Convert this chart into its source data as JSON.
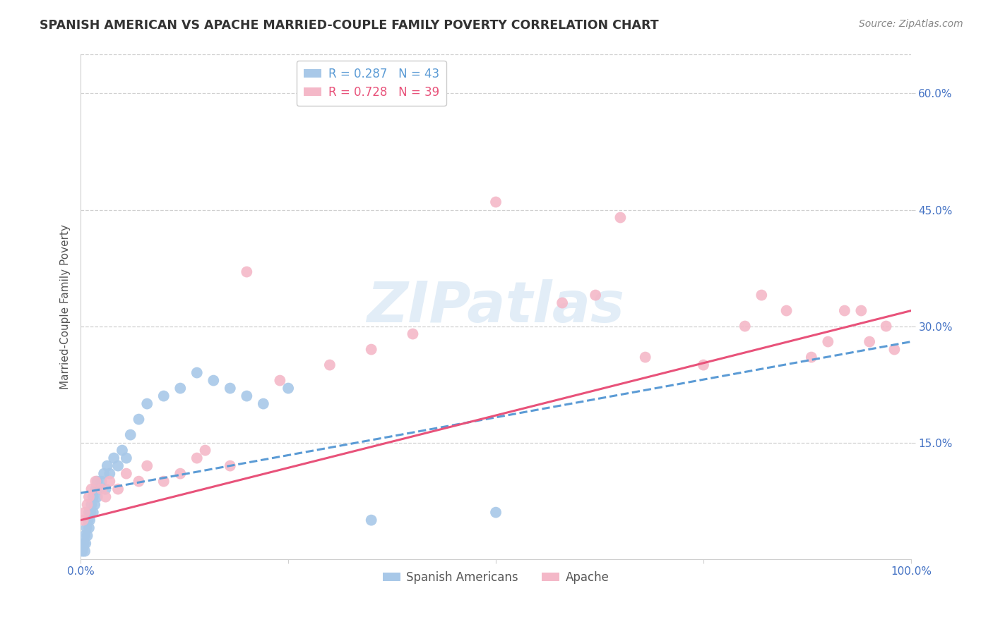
{
  "title": "SPANISH AMERICAN VS APACHE MARRIED-COUPLE FAMILY POVERTY CORRELATION CHART",
  "source": "Source: ZipAtlas.com",
  "ylabel": "Married-Couple Family Poverty",
  "xlim": [
    0,
    100
  ],
  "ylim": [
    0,
    65
  ],
  "yticks": [
    15,
    30,
    45,
    60
  ],
  "ytick_labels": [
    "15.0%",
    "30.0%",
    "45.0%",
    "60.0%"
  ],
  "xticks": [
    0,
    100
  ],
  "xtick_labels": [
    "0.0%",
    "100.0%"
  ],
  "background_color": "#ffffff",
  "series1_name": "Spanish Americans",
  "series1_color": "#a8c8e8",
  "series1_line_color": "#5b9bd5",
  "series1_R": 0.287,
  "series1_N": 43,
  "series2_name": "Apache",
  "series2_color": "#f4b8c8",
  "series2_line_color": "#e8527a",
  "series2_R": 0.728,
  "series2_N": 39,
  "grid_color": "#d0d0d0",
  "tick_color": "#4472c4",
  "series1_x": [
    0.2,
    0.3,
    0.4,
    0.5,
    0.5,
    0.6,
    0.7,
    0.8,
    0.9,
    1.0,
    1.0,
    1.1,
    1.2,
    1.3,
    1.5,
    1.5,
    1.7,
    1.8,
    2.0,
    2.0,
    2.2,
    2.5,
    2.8,
    3.0,
    3.2,
    3.5,
    4.0,
    4.5,
    5.0,
    5.5,
    6.0,
    7.0,
    8.0,
    10.0,
    12.0,
    14.0,
    16.0,
    18.0,
    20.0,
    22.0,
    25.0,
    35.0,
    50.0
  ],
  "series1_y": [
    1.0,
    1.5,
    2.0,
    1.0,
    3.0,
    2.0,
    4.0,
    3.0,
    5.0,
    4.0,
    6.0,
    5.0,
    6.0,
    7.0,
    6.0,
    8.0,
    7.0,
    9.0,
    8.0,
    10.0,
    9.0,
    10.0,
    11.0,
    9.0,
    12.0,
    11.0,
    13.0,
    12.0,
    14.0,
    13.0,
    16.0,
    18.0,
    20.0,
    21.0,
    22.0,
    24.0,
    23.0,
    22.0,
    21.0,
    20.0,
    22.0,
    5.0,
    6.0
  ],
  "series2_x": [
    0.3,
    0.5,
    0.8,
    1.0,
    1.3,
    1.8,
    2.5,
    3.0,
    3.5,
    4.5,
    5.5,
    7.0,
    8.0,
    10.0,
    12.0,
    14.0,
    15.0,
    18.0,
    20.0,
    24.0,
    30.0,
    35.0,
    40.0,
    50.0,
    58.0,
    62.0,
    65.0,
    68.0,
    75.0,
    80.0,
    82.0,
    85.0,
    88.0,
    90.0,
    92.0,
    94.0,
    95.0,
    97.0,
    98.0
  ],
  "series2_y": [
    5.0,
    6.0,
    7.0,
    8.0,
    9.0,
    10.0,
    9.0,
    8.0,
    10.0,
    9.0,
    11.0,
    10.0,
    12.0,
    10.0,
    11.0,
    13.0,
    14.0,
    12.0,
    37.0,
    23.0,
    25.0,
    27.0,
    29.0,
    46.0,
    33.0,
    34.0,
    44.0,
    26.0,
    25.0,
    30.0,
    34.0,
    32.0,
    26.0,
    28.0,
    32.0,
    32.0,
    28.0,
    30.0,
    27.0
  ],
  "s1_line_x": [
    0,
    100
  ],
  "s1_line_y": [
    8.5,
    28.0
  ],
  "s2_line_x": [
    0,
    100
  ],
  "s2_line_y": [
    5.0,
    32.0
  ]
}
